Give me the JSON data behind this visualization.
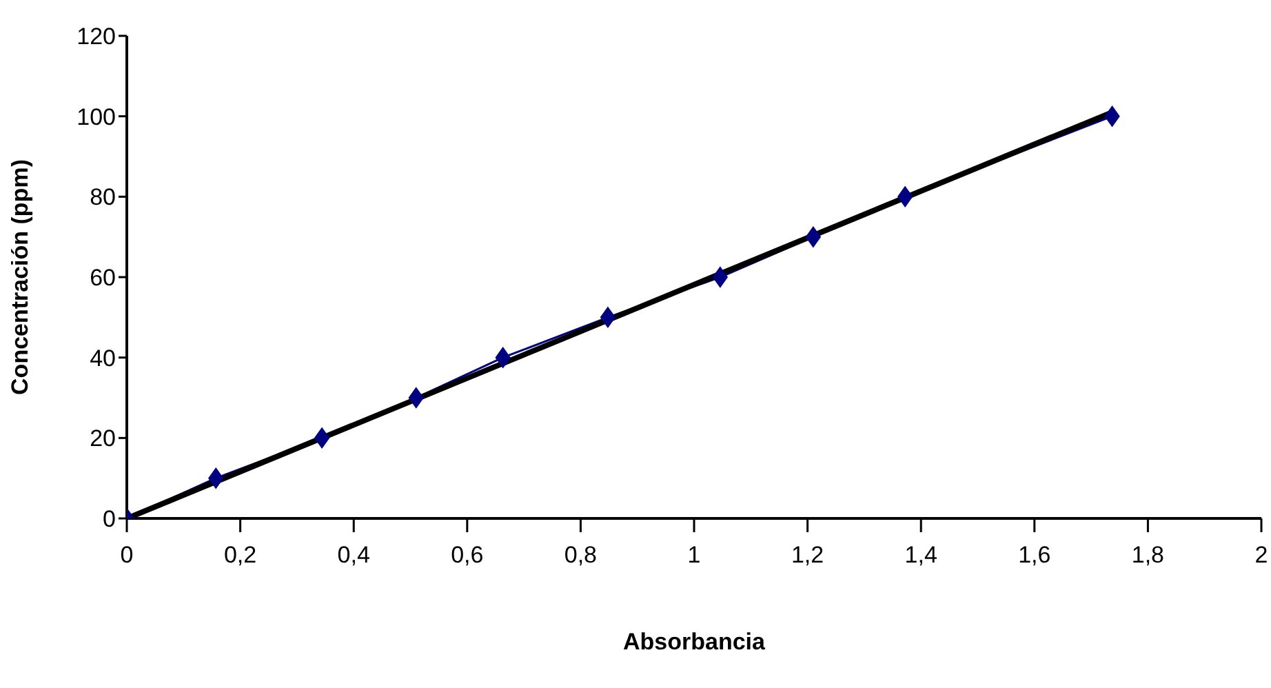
{
  "chart_data": {
    "type": "line",
    "xlabel": "Absorbancia",
    "ylabel": "Concentración (ppm)",
    "xlim": [
      0,
      2
    ],
    "ylim": [
      0,
      120
    ],
    "xticks": [
      0,
      {
        "value": 0.2,
        "label": "0,2"
      },
      {
        "value": 0.4,
        "label": "0,4"
      },
      {
        "value": 0.6,
        "label": "0,6"
      },
      {
        "value": 0.8,
        "label": "0,8"
      },
      1,
      {
        "value": 1.2,
        "label": "1,2"
      },
      {
        "value": 1.4,
        "label": "1,4"
      },
      {
        "value": 1.6,
        "label": "1,6"
      },
      {
        "value": 1.8,
        "label": "1,8"
      },
      2
    ],
    "yticks": [
      0,
      20,
      40,
      60,
      80,
      100,
      120
    ],
    "grid": false,
    "legend": false,
    "series": [
      {
        "color": "#000080",
        "marker": "diamond",
        "line_style": "solid",
        "x": [
          0,
          0.157,
          0.344,
          0.51,
          0.663,
          0.848,
          1.046,
          1.21,
          1.372,
          1.737
        ],
        "values": [
          0,
          10,
          20,
          30,
          40,
          50,
          60,
          70,
          80,
          100
        ]
      },
      {
        "color": "#000000",
        "marker": "none",
        "line_style": "solid",
        "x": [
          0,
          1.737
        ],
        "values": [
          0,
          101
        ]
      }
    ]
  }
}
